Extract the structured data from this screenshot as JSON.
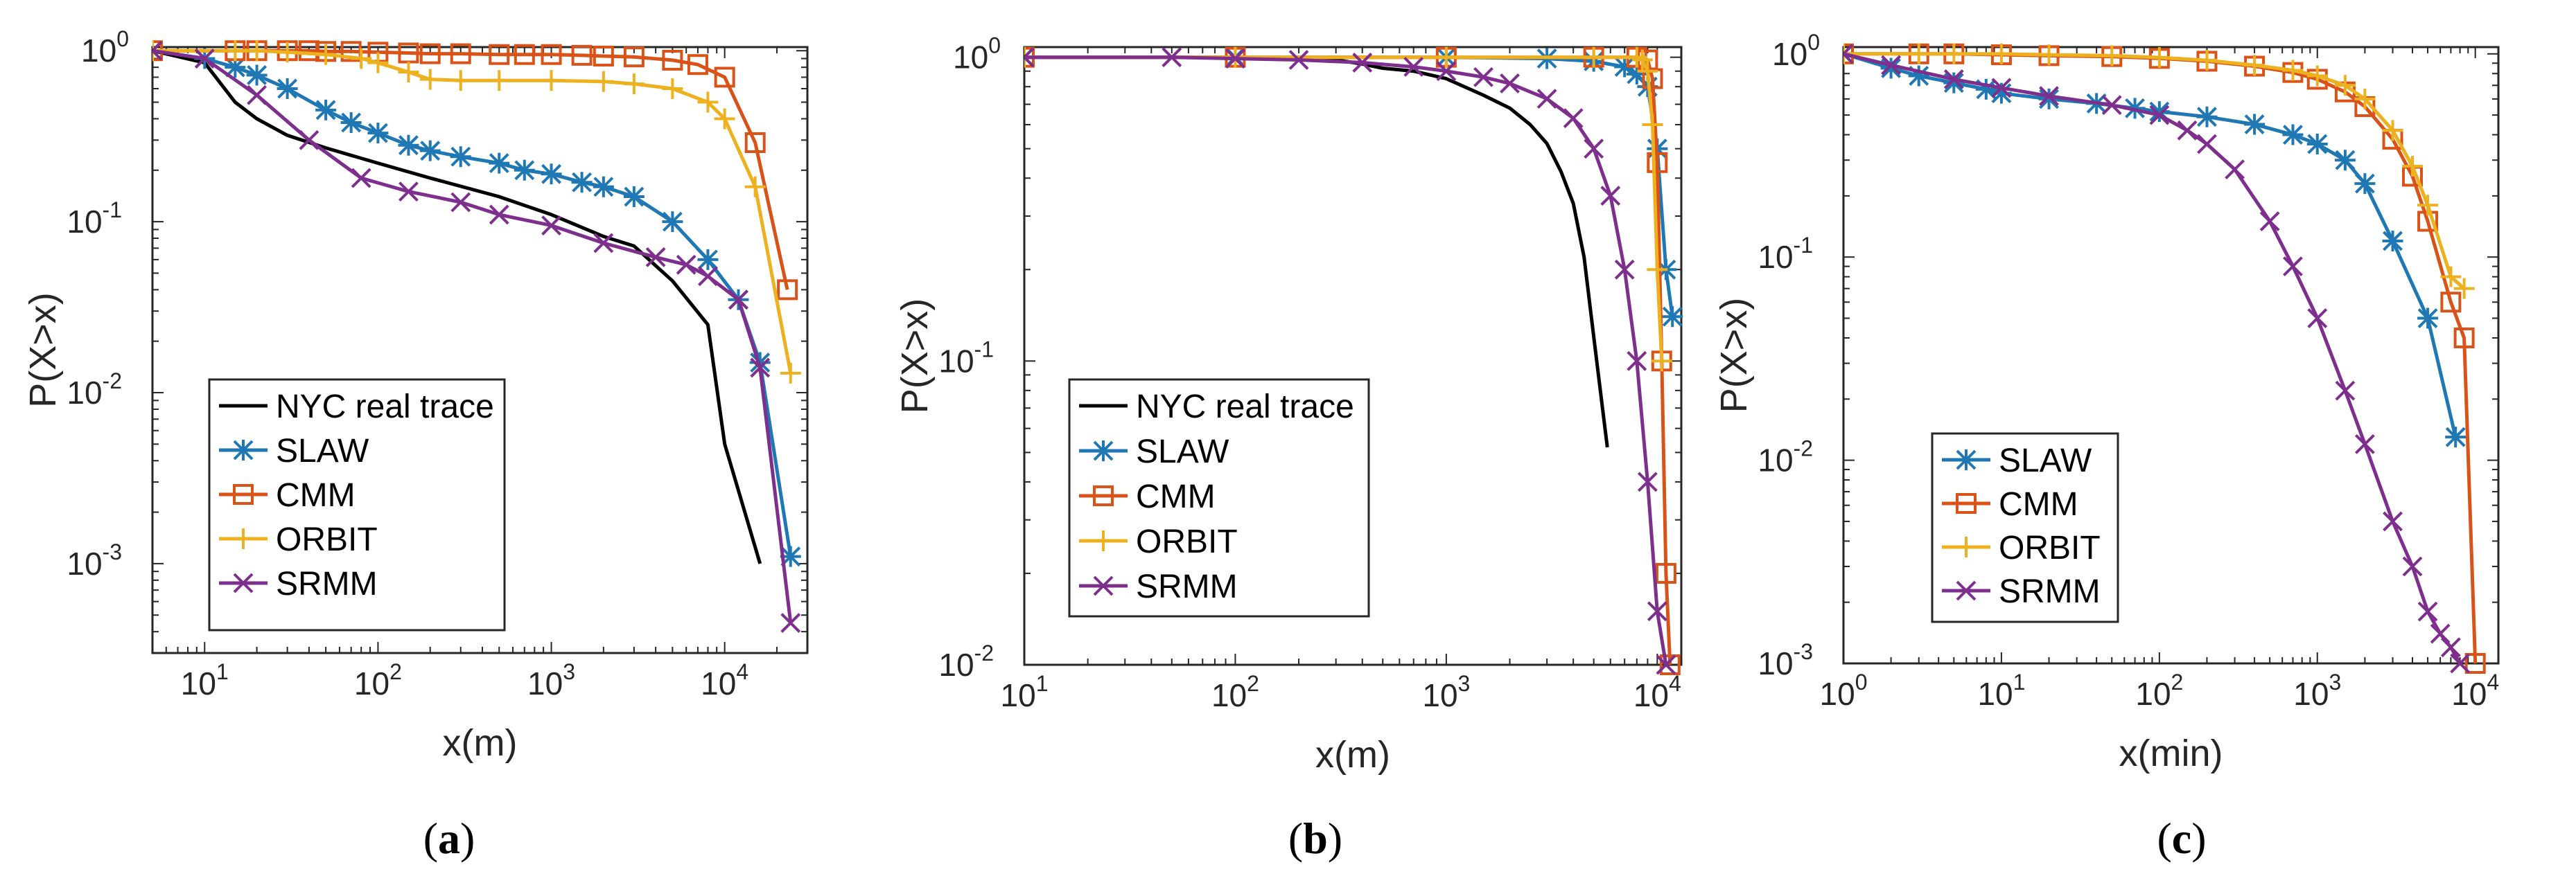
{
  "chart_data": [
    {
      "type": "line",
      "panel": "a",
      "caption_letter": "a",
      "xscale": "log",
      "yscale": "log",
      "xlim": [
        5,
        30000
      ],
      "ylim": [
        0.0003,
        1.05
      ],
      "xlabel": "x(m)",
      "ylabel": "P(X>x)",
      "xtick_values": [
        10,
        100,
        1000,
        10000
      ],
      "xtick_labels": [
        {
          "base": "10",
          "exp": "1"
        },
        {
          "base": "10",
          "exp": "2"
        },
        {
          "base": "10",
          "exp": "3"
        },
        {
          "base": "10",
          "exp": "4"
        }
      ],
      "ytick_values": [
        0.001,
        0.01,
        0.1,
        1
      ],
      "ytick_labels": [
        {
          "base": "10",
          "exp": "-3"
        },
        {
          "base": "10",
          "exp": "-2"
        },
        {
          "base": "10",
          "exp": "-1"
        },
        {
          "base": "10",
          "exp": "0"
        }
      ],
      "legend_position": "bottom-left",
      "legend": [
        "NYC real trace",
        "SLAW",
        "CMM",
        "ORBIT",
        "SRMM"
      ],
      "series": [
        {
          "name": "NYC real trace",
          "color": "#000000",
          "marker": "none",
          "x": [
            5,
            10,
            15,
            20,
            30,
            50,
            100,
            200,
            500,
            1000,
            2000,
            3000,
            5000,
            8000,
            10000,
            16000
          ],
          "y": [
            1.0,
            0.85,
            0.5,
            0.4,
            0.32,
            0.27,
            0.22,
            0.18,
            0.14,
            0.11,
            0.082,
            0.072,
            0.045,
            0.025,
            0.005,
            0.001
          ]
        },
        {
          "name": "SLAW",
          "color": "#1f77b4",
          "marker": "star",
          "x": [
            5,
            10,
            15,
            20,
            30,
            50,
            70,
            100,
            150,
            200,
            300,
            500,
            700,
            1000,
            1500,
            2000,
            3000,
            5000,
            8000,
            12000,
            16000,
            24000
          ],
          "y": [
            1.0,
            0.9,
            0.8,
            0.72,
            0.6,
            0.45,
            0.38,
            0.33,
            0.28,
            0.26,
            0.24,
            0.22,
            0.2,
            0.19,
            0.17,
            0.16,
            0.14,
            0.1,
            0.06,
            0.035,
            0.015,
            0.0011
          ]
        },
        {
          "name": "CMM",
          "color": "#d95319",
          "marker": "square",
          "x": [
            5,
            15,
            20,
            30,
            40,
            50,
            70,
            100,
            150,
            200,
            300,
            500,
            700,
            1000,
            1500,
            2000,
            3000,
            5000,
            7000,
            10000,
            15000,
            23000
          ],
          "y": [
            1.0,
            1.0,
            1.0,
            1.0,
            1.0,
            0.99,
            0.99,
            0.98,
            0.97,
            0.96,
            0.96,
            0.95,
            0.95,
            0.95,
            0.94,
            0.93,
            0.92,
            0.88,
            0.83,
            0.7,
            0.29,
            0.04
          ]
        },
        {
          "name": "ORBIT",
          "color": "#edb120",
          "marker": "plus",
          "x": [
            5,
            15,
            20,
            30,
            50,
            80,
            100,
            150,
            200,
            300,
            500,
            1000,
            2000,
            3000,
            5000,
            8000,
            10000,
            15000,
            24000
          ],
          "y": [
            1.0,
            1.0,
            1.0,
            0.98,
            0.95,
            0.9,
            0.85,
            0.75,
            0.68,
            0.67,
            0.67,
            0.67,
            0.66,
            0.64,
            0.6,
            0.5,
            0.4,
            0.16,
            0.013
          ]
        },
        {
          "name": "SRMM",
          "color": "#7e2f8e",
          "marker": "x",
          "x": [
            5,
            10,
            20,
            40,
            80,
            150,
            300,
            500,
            1000,
            2000,
            4000,
            6000,
            8000,
            12000,
            16000,
            24000
          ],
          "y": [
            1.0,
            0.9,
            0.55,
            0.3,
            0.18,
            0.15,
            0.13,
            0.11,
            0.095,
            0.075,
            0.062,
            0.056,
            0.048,
            0.035,
            0.014,
            0.00045
          ]
        }
      ]
    },
    {
      "type": "line",
      "panel": "b",
      "caption_letter": "b",
      "xscale": "log",
      "yscale": "log",
      "xlim": [
        10,
        13000
      ],
      "ylim": [
        0.01,
        1.08
      ],
      "xlabel": "x(m)",
      "ylabel": "P(X>x)",
      "xtick_values": [
        10,
        100,
        1000,
        10000
      ],
      "xtick_labels": [
        {
          "base": "10",
          "exp": "1"
        },
        {
          "base": "10",
          "exp": "2"
        },
        {
          "base": "10",
          "exp": "3"
        },
        {
          "base": "10",
          "exp": "4"
        }
      ],
      "ytick_values": [
        0.01,
        0.1,
        1
      ],
      "ytick_labels": [
        {
          "base": "10",
          "exp": "-2"
        },
        {
          "base": "10",
          "exp": "-1"
        },
        {
          "base": "10",
          "exp": "0"
        }
      ],
      "legend_position": "bottom-left",
      "legend": [
        "NYC real trace",
        "SLAW",
        "CMM",
        "ORBIT",
        "SRMM"
      ],
      "series": [
        {
          "name": "NYC real trace",
          "color": "#000000",
          "marker": "none",
          "x": [
            10,
            100,
            200,
            300,
            400,
            500,
            700,
            1000,
            1500,
            2000,
            2500,
            3000,
            3500,
            4000,
            4500,
            5000,
            5500,
            5800
          ],
          "y": [
            1.0,
            1.0,
            0.99,
            0.98,
            0.95,
            0.92,
            0.9,
            0.85,
            0.75,
            0.68,
            0.6,
            0.52,
            0.42,
            0.33,
            0.22,
            0.12,
            0.07,
            0.052
          ]
        },
        {
          "name": "SLAW",
          "color": "#1f77b4",
          "marker": "star",
          "x": [
            10,
            100,
            1000,
            3000,
            5000,
            7000,
            8000,
            9000,
            10000,
            11000,
            11800
          ],
          "y": [
            1.0,
            1.0,
            1.0,
            0.99,
            0.97,
            0.93,
            0.88,
            0.8,
            0.5,
            0.2,
            0.14
          ]
        },
        {
          "name": "CMM",
          "color": "#d95319",
          "marker": "square",
          "x": [
            10,
            100,
            1000,
            5000,
            8000,
            9000,
            9500,
            10000,
            10500,
            11000,
            11500
          ],
          "y": [
            1.0,
            1.0,
            1.0,
            1.0,
            1.0,
            0.98,
            0.85,
            0.45,
            0.1,
            0.02,
            0.01
          ]
        },
        {
          "name": "ORBIT",
          "color": "#edb120",
          "marker": "plus",
          "x": [
            10,
            100,
            1000,
            5000,
            8000,
            8500,
            9000,
            9500,
            10000,
            10500
          ],
          "y": [
            1.0,
            1.0,
            1.0,
            1.0,
            1.0,
            0.98,
            0.9,
            0.6,
            0.2,
            0.1
          ]
        },
        {
          "name": "SRMM",
          "color": "#7e2f8e",
          "marker": "x",
          "x": [
            10,
            50,
            100,
            200,
            400,
            700,
            1000,
            1500,
            2000,
            3000,
            4000,
            5000,
            6000,
            7000,
            8000,
            9000,
            10000,
            11000
          ],
          "y": [
            1.0,
            1.0,
            0.99,
            0.98,
            0.96,
            0.93,
            0.9,
            0.86,
            0.82,
            0.73,
            0.63,
            0.5,
            0.35,
            0.2,
            0.1,
            0.04,
            0.015,
            0.01
          ]
        }
      ]
    },
    {
      "type": "line",
      "panel": "c",
      "caption_letter": "c",
      "xscale": "log",
      "yscale": "log",
      "xlim": [
        1,
        14000
      ],
      "ylim": [
        0.001,
        1.08
      ],
      "xlabel": "x(min)",
      "ylabel": "P(X>x)",
      "xtick_values": [
        1,
        10,
        100,
        1000,
        10000
      ],
      "xtick_labels": [
        {
          "base": "10",
          "exp": "0"
        },
        {
          "base": "10",
          "exp": "1"
        },
        {
          "base": "10",
          "exp": "2"
        },
        {
          "base": "10",
          "exp": "3"
        },
        {
          "base": "10",
          "exp": "4"
        }
      ],
      "ytick_values": [
        0.001,
        0.01,
        0.1,
        1
      ],
      "ytick_labels": [
        {
          "base": "10",
          "exp": "-3"
        },
        {
          "base": "10",
          "exp": "-2"
        },
        {
          "base": "10",
          "exp": "-1"
        },
        {
          "base": "10",
          "exp": "0"
        }
      ],
      "legend_position": "bottom-left",
      "legend": [
        "SLAW",
        "CMM",
        "ORBIT",
        "SRMM"
      ],
      "series": [
        {
          "name": "SLAW",
          "color": "#1f77b4",
          "marker": "star",
          "x": [
            1,
            2,
            3,
            5,
            8,
            10,
            20,
            40,
            70,
            100,
            200,
            400,
            700,
            1000,
            1500,
            2000,
            3000,
            5000,
            7500
          ],
          "y": [
            1.0,
            0.85,
            0.78,
            0.72,
            0.67,
            0.64,
            0.6,
            0.57,
            0.54,
            0.52,
            0.49,
            0.45,
            0.4,
            0.36,
            0.3,
            0.23,
            0.12,
            0.05,
            0.013
          ]
        },
        {
          "name": "CMM",
          "color": "#d95319",
          "marker": "square",
          "x": [
            1,
            3,
            5,
            10,
            20,
            50,
            100,
            200,
            400,
            700,
            1000,
            1500,
            2000,
            3000,
            4000,
            5000,
            7000,
            8500,
            10000
          ],
          "y": [
            1.0,
            1.0,
            1.0,
            0.99,
            0.98,
            0.97,
            0.95,
            0.92,
            0.87,
            0.81,
            0.75,
            0.65,
            0.55,
            0.38,
            0.25,
            0.15,
            0.06,
            0.04,
            0.001
          ]
        },
        {
          "name": "ORBIT",
          "color": "#edb120",
          "marker": "plus",
          "x": [
            1,
            3,
            5,
            10,
            20,
            50,
            100,
            200,
            400,
            700,
            1000,
            1500,
            2000,
            3000,
            4000,
            5000,
            7000,
            8500
          ],
          "y": [
            1.0,
            1.0,
            1.0,
            1.0,
            0.99,
            0.98,
            0.96,
            0.93,
            0.88,
            0.83,
            0.78,
            0.7,
            0.6,
            0.42,
            0.28,
            0.18,
            0.08,
            0.07
          ]
        },
        {
          "name": "SRMM",
          "color": "#7e2f8e",
          "marker": "x",
          "x": [
            1,
            2,
            5,
            10,
            20,
            50,
            100,
            150,
            200,
            300,
            500,
            700,
            1000,
            1500,
            2000,
            3000,
            4000,
            5000,
            6000,
            7000,
            8000
          ],
          "y": [
            1.0,
            0.88,
            0.75,
            0.68,
            0.62,
            0.56,
            0.5,
            0.42,
            0.36,
            0.27,
            0.15,
            0.09,
            0.05,
            0.022,
            0.012,
            0.005,
            0.003,
            0.0018,
            0.0014,
            0.0012,
            0.001
          ]
        }
      ]
    }
  ]
}
